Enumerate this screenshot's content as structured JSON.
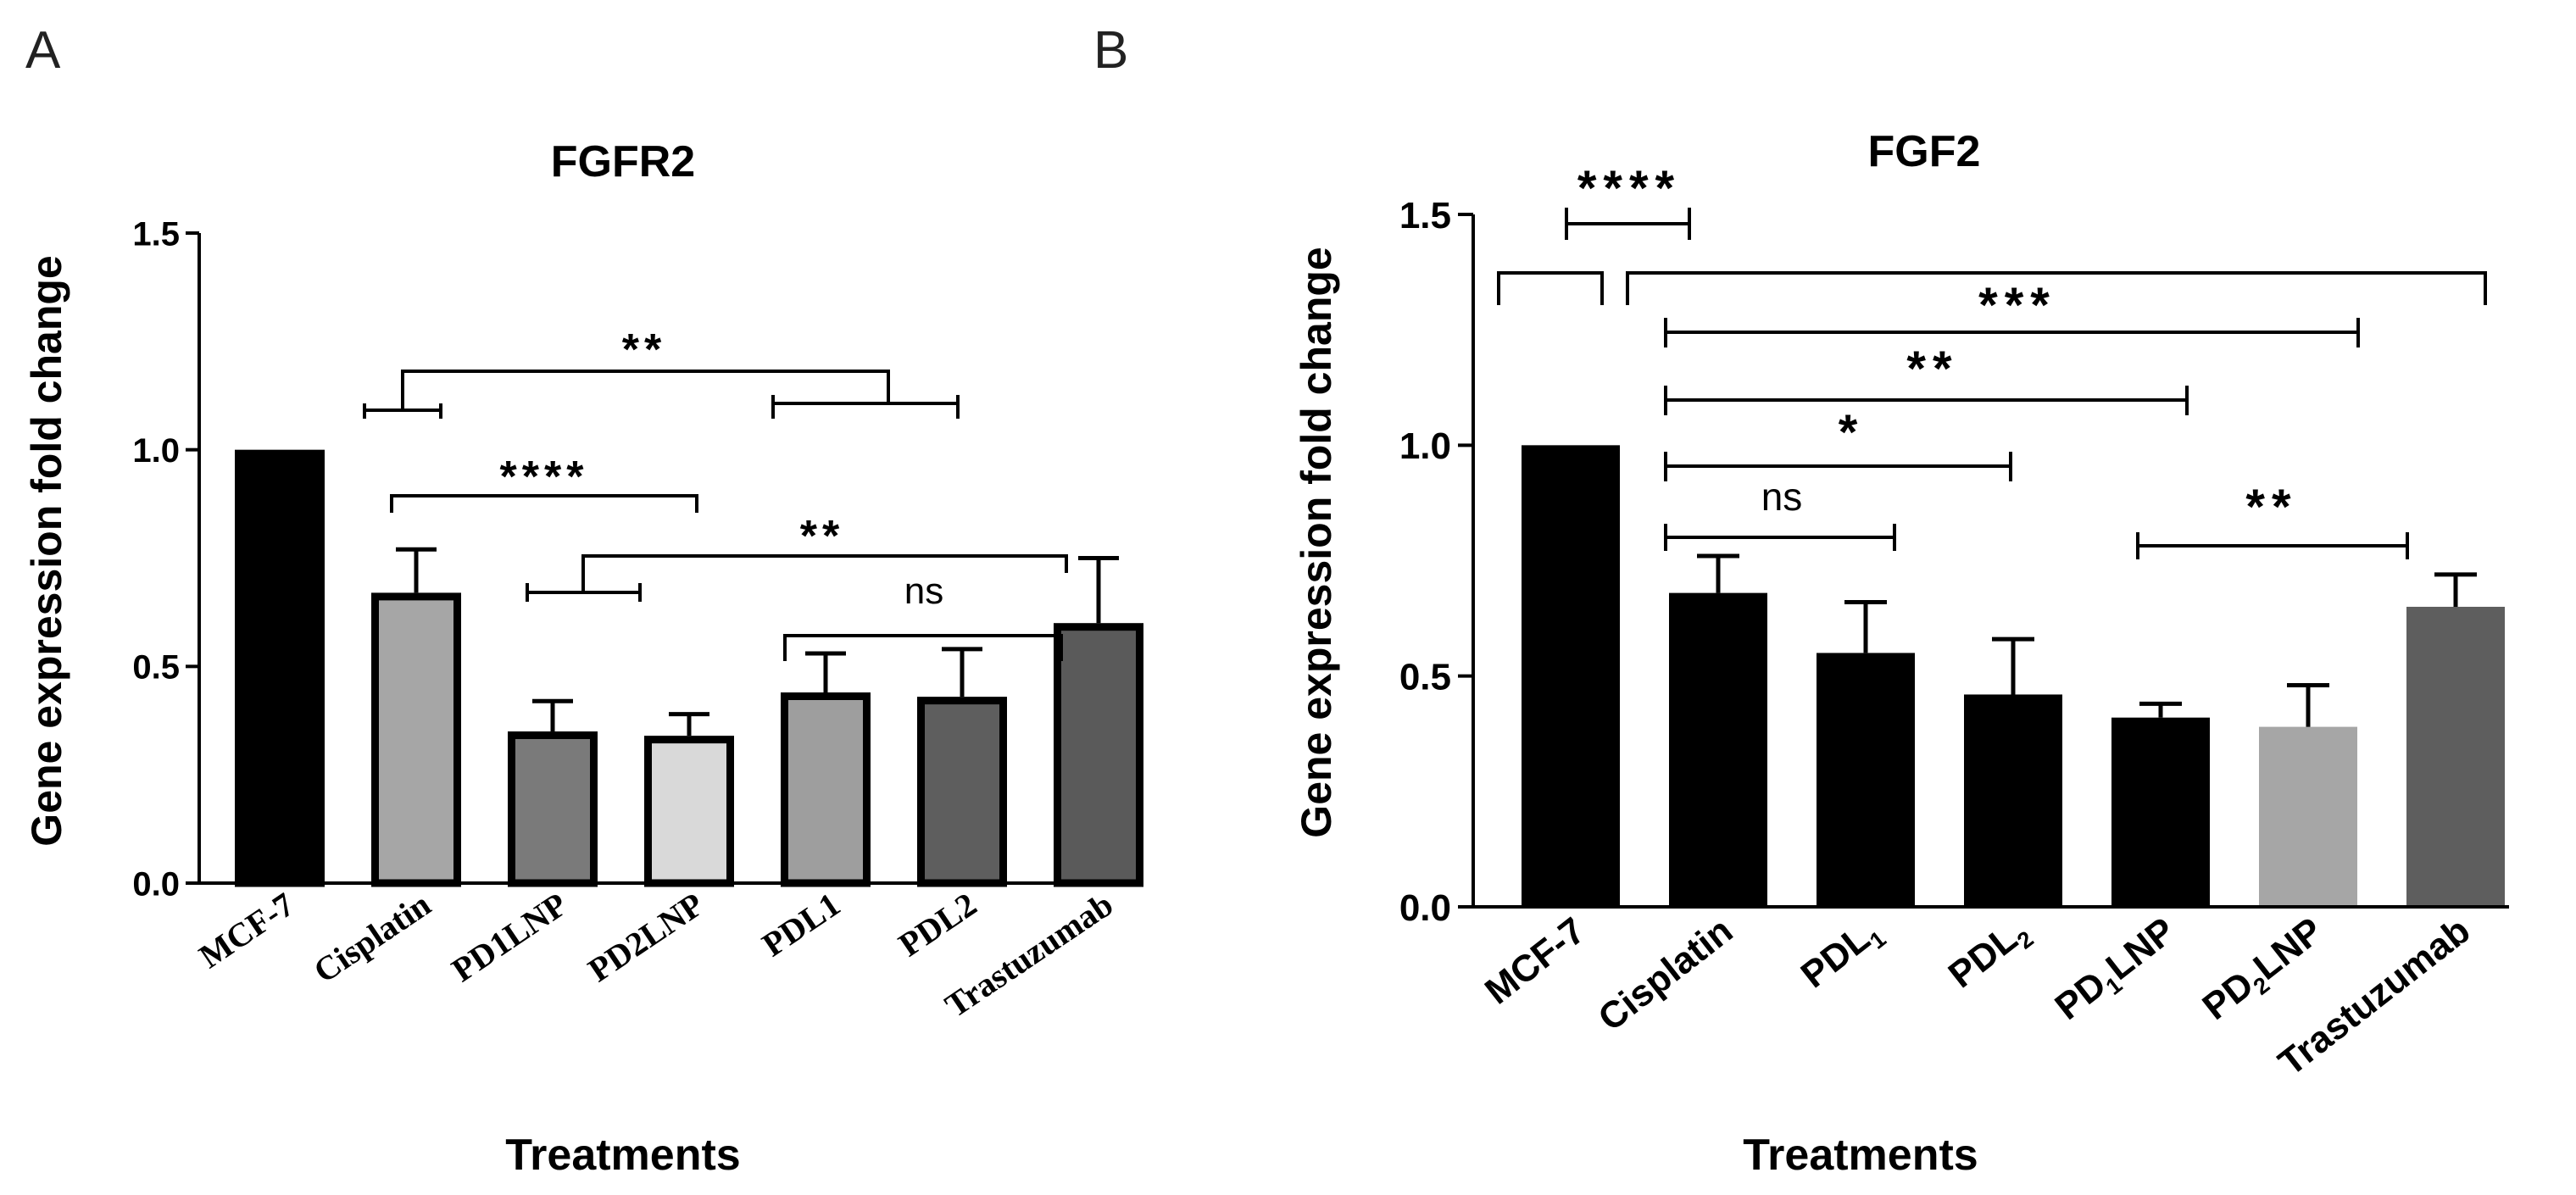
{
  "chart_data": [
    {
      "panel_label": "A",
      "type": "bar",
      "title": "FGFR2",
      "xlabel": "Treatments",
      "ylabel": "Gene expression fold change",
      "ylim": [
        0,
        1.5
      ],
      "yticks": [
        "0.0",
        "0.5",
        "1.0",
        "1.5"
      ],
      "ytick_values": [
        0,
        0.5,
        1.0,
        1.5
      ],
      "categories": [
        "MCF-7",
        "Cisplatin",
        "PD1LNP",
        "PD2LNP",
        "PDL1",
        "PDL2",
        "Trastuzumab"
      ],
      "values": [
        1.0,
        0.67,
        0.35,
        0.34,
        0.44,
        0.43,
        0.6
      ],
      "errors": [
        0,
        0.1,
        0.07,
        0.05,
        0.09,
        0.11,
        0.15
      ],
      "colors": [
        "#000000",
        "#a6a6a6",
        "#7a7a7a",
        "#d9d9d9",
        "#9e9e9e",
        "#5e5e5e",
        "#5a5a5a"
      ],
      "outline": "#000000",
      "significance": [
        "**",
        "****",
        "**",
        "ns"
      ]
    },
    {
      "panel_label": "B",
      "type": "bar",
      "title": "FGF2",
      "xlabel": "Treatments",
      "ylabel": "Gene expression fold change",
      "ylim": [
        0,
        1.5
      ],
      "yticks": [
        "0.0",
        "0.5",
        "1.0",
        "1.5"
      ],
      "ytick_values": [
        0,
        0.5,
        1.0,
        1.5
      ],
      "categories": [
        "MCF-7",
        "Cisplatin",
        "PDL1",
        "PDL2",
        "PD1LNP",
        "PD2LNP",
        "Trastuzumab"
      ],
      "category_labels": [
        {
          "main": "MCF-7"
        },
        {
          "main": "Cisplatin"
        },
        {
          "main": "PDL",
          "sub": "1"
        },
        {
          "main": "PDL",
          "sub": "2"
        },
        {
          "main": "PD",
          "sub": "1",
          "rest": "LNP"
        },
        {
          "main": "PD",
          "sub": "2",
          "rest": "LNP"
        },
        {
          "main": "Trastuzumab"
        }
      ],
      "values": [
        1.0,
        0.68,
        0.55,
        0.46,
        0.41,
        0.39,
        0.65
      ],
      "errors": [
        0,
        0.08,
        0.11,
        0.12,
        0.03,
        0.09,
        0.07
      ],
      "colors": [
        "#000000",
        "#000000",
        "#000000",
        "#000000",
        "#000000",
        "#a6a6a6",
        "#5e5e5e"
      ],
      "significance": [
        "****",
        "***",
        "**",
        "*",
        "ns",
        "**"
      ]
    }
  ]
}
